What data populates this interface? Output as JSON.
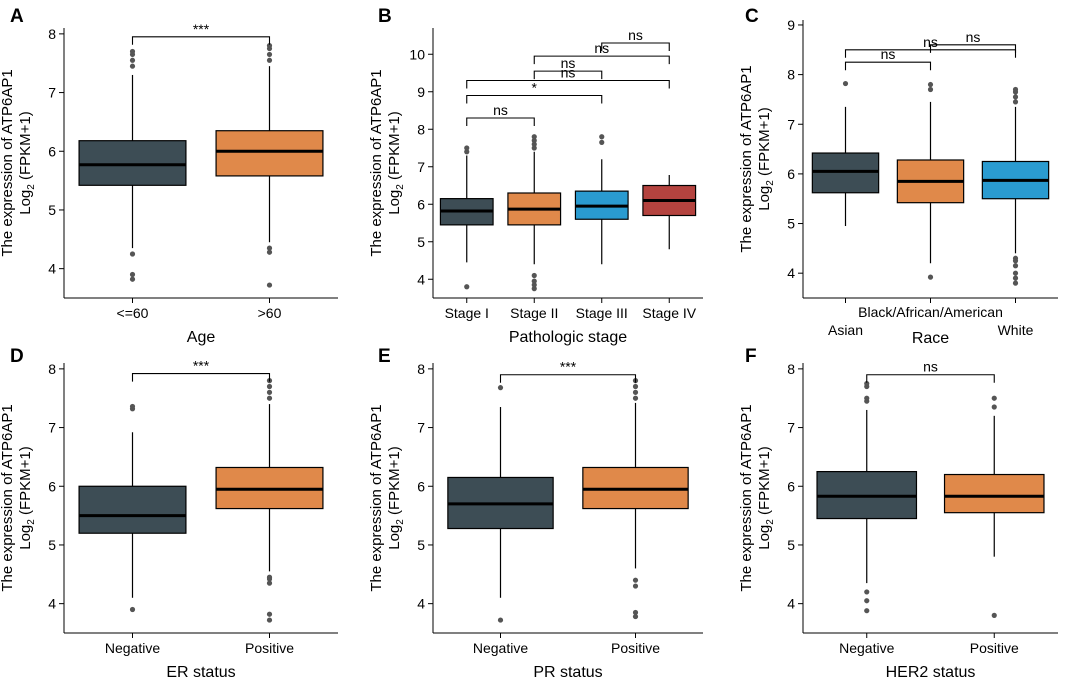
{
  "colors": {
    "dark": "#3d4d55",
    "orange": "#e0894a",
    "blue": "#2a9bd0",
    "red": "#b4433f",
    "outlier": "#555555",
    "axis": "#000000"
  },
  "chart_data": [
    {
      "panel": "A",
      "type": "box",
      "xlabel": "Age",
      "ylabel_main": "The expression of ATP6AP1",
      "ylabel_sub_prefix": "Log",
      "ylabel_sub_index": "2",
      "ylabel_sub_suffix": " (FPKM+1)",
      "ylim": [
        3.5,
        8.1
      ],
      "yticks": [
        4,
        5,
        6,
        7,
        8
      ],
      "categories": [
        "<=60",
        ">60"
      ],
      "boxes": [
        {
          "label": "<=60",
          "color": "dark",
          "whisker_low": 4.35,
          "q1": 5.42,
          "median": 5.77,
          "q3": 6.18,
          "whisker_high": 7.3,
          "outliers": [
            3.82,
            3.9,
            4.25,
            7.45,
            7.55,
            7.65,
            7.7
          ]
        },
        {
          "label": ">60",
          "color": "orange",
          "whisker_low": 4.45,
          "q1": 5.58,
          "median": 6.0,
          "q3": 6.35,
          "whisker_high": 7.45,
          "outliers": [
            3.72,
            4.28,
            4.35,
            7.55,
            7.65,
            7.75,
            7.8
          ]
        }
      ],
      "comparisons": [
        {
          "from": 0,
          "to": 1,
          "y": 7.95,
          "label": "***"
        }
      ]
    },
    {
      "panel": "B",
      "type": "box",
      "xlabel": "Pathologic stage",
      "ylabel_main": "The expression of ATP6AP1",
      "ylabel_sub_prefix": "Log",
      "ylabel_sub_index": "2",
      "ylabel_sub_suffix": " (FPKM+1)",
      "ylim": [
        3.5,
        10.7
      ],
      "yticks": [
        4,
        5,
        6,
        7,
        8,
        9,
        10
      ],
      "categories": [
        "Stage I",
        "Stage II",
        "Stage III",
        "Stage IV"
      ],
      "boxes": [
        {
          "label": "Stage I",
          "color": "dark",
          "whisker_low": 4.45,
          "q1": 5.45,
          "median": 5.82,
          "q3": 6.15,
          "whisker_high": 7.3,
          "outliers": [
            3.8,
            7.4,
            7.5
          ]
        },
        {
          "label": "Stage II",
          "color": "orange",
          "whisker_low": 4.4,
          "q1": 5.45,
          "median": 5.87,
          "q3": 6.3,
          "whisker_high": 7.4,
          "outliers": [
            3.75,
            3.85,
            3.95,
            4.1,
            7.5,
            7.6,
            7.7,
            7.8
          ]
        },
        {
          "label": "Stage III",
          "color": "blue",
          "whisker_low": 4.4,
          "q1": 5.6,
          "median": 5.95,
          "q3": 6.35,
          "whisker_high": 7.2,
          "outliers": [
            7.65,
            7.8
          ]
        },
        {
          "label": "Stage IV",
          "color": "red",
          "whisker_low": 4.8,
          "q1": 5.7,
          "median": 6.1,
          "q3": 6.5,
          "whisker_high": 6.78,
          "outliers": []
        }
      ],
      "comparisons": [
        {
          "from": 0,
          "to": 1,
          "y": 8.3,
          "label": "ns"
        },
        {
          "from": 0,
          "to": 2,
          "y": 8.9,
          "label": "*"
        },
        {
          "from": 0,
          "to": 3,
          "y": 9.3,
          "label": "ns"
        },
        {
          "from": 1,
          "to": 2,
          "y": 9.55,
          "label": "ns"
        },
        {
          "from": 1,
          "to": 3,
          "y": 9.95,
          "label": "ns"
        },
        {
          "from": 2,
          "to": 3,
          "y": 10.3,
          "label": "ns"
        }
      ]
    },
    {
      "panel": "C",
      "type": "box",
      "xlabel": "Race",
      "ylabel_main": "The expression of ATP6AP1",
      "ylabel_sub_prefix": "Log",
      "ylabel_sub_index": "2",
      "ylabel_sub_suffix": " (FPKM+1)",
      "ylim": [
        3.5,
        9.1
      ],
      "yticks": [
        4,
        5,
        6,
        7,
        8,
        9
      ],
      "categories": [
        "Asian",
        "Black/African/American",
        "White"
      ],
      "staggered_labels": true,
      "boxes": [
        {
          "label": "Asian",
          "color": "dark",
          "whisker_low": 4.95,
          "q1": 5.62,
          "median": 6.05,
          "q3": 6.42,
          "whisker_high": 7.35,
          "outliers": [
            7.82
          ]
        },
        {
          "label": "Black/African/American",
          "color": "orange",
          "whisker_low": 4.2,
          "q1": 5.42,
          "median": 5.85,
          "q3": 6.28,
          "whisker_high": 7.45,
          "outliers": [
            3.92,
            7.7,
            7.8
          ]
        },
        {
          "label": "White",
          "color": "blue",
          "whisker_low": 4.4,
          "q1": 5.5,
          "median": 5.87,
          "q3": 6.25,
          "whisker_high": 7.35,
          "outliers": [
            3.8,
            3.9,
            4.0,
            4.15,
            4.25,
            4.3,
            7.45,
            7.55,
            7.65,
            7.7
          ]
        }
      ],
      "comparisons": [
        {
          "from": 0,
          "to": 1,
          "y": 8.25,
          "label": "ns"
        },
        {
          "from": 0,
          "to": 2,
          "y": 8.5,
          "label": "ns"
        },
        {
          "from": 1,
          "to": 2,
          "y": 8.6,
          "label": "ns"
        }
      ]
    },
    {
      "panel": "D",
      "type": "box",
      "xlabel": "ER status",
      "ylabel_main": "The expression of ATP6AP1",
      "ylabel_sub_prefix": "Log",
      "ylabel_sub_index": "2",
      "ylabel_sub_suffix": " (FPKM+1)",
      "ylim": [
        3.5,
        8.1
      ],
      "yticks": [
        4,
        5,
        6,
        7,
        8
      ],
      "categories": [
        "Negative",
        "Positive"
      ],
      "boxes": [
        {
          "label": "Negative",
          "color": "dark",
          "whisker_low": 4.1,
          "q1": 5.2,
          "median": 5.5,
          "q3": 6.0,
          "whisker_high": 6.92,
          "outliers": [
            3.9,
            7.32,
            7.36
          ]
        },
        {
          "label": "Positive",
          "color": "orange",
          "whisker_low": 4.55,
          "q1": 5.62,
          "median": 5.95,
          "q3": 6.32,
          "whisker_high": 7.4,
          "outliers": [
            3.72,
            3.82,
            4.35,
            4.42,
            4.45,
            7.5,
            7.6,
            7.7,
            7.8
          ]
        }
      ],
      "comparisons": [
        {
          "from": 0,
          "to": 1,
          "y": 7.92,
          "label": "***"
        }
      ]
    },
    {
      "panel": "E",
      "type": "box",
      "xlabel": "PR status",
      "ylabel_main": "The expression of ATP6AP1",
      "ylabel_sub_prefix": "Log",
      "ylabel_sub_index": "2",
      "ylabel_sub_suffix": " (FPKM+1)",
      "ylim": [
        3.5,
        8.1
      ],
      "yticks": [
        4,
        5,
        6,
        7,
        8
      ],
      "categories": [
        "Negative",
        "Positive"
      ],
      "boxes": [
        {
          "label": "Negative",
          "color": "dark",
          "whisker_low": 4.1,
          "q1": 5.28,
          "median": 5.7,
          "q3": 6.15,
          "whisker_high": 7.35,
          "outliers": [
            3.72,
            7.68
          ]
        },
        {
          "label": "Positive",
          "color": "orange",
          "whisker_low": 4.6,
          "q1": 5.62,
          "median": 5.95,
          "q3": 6.32,
          "whisker_high": 7.42,
          "outliers": [
            3.78,
            3.85,
            4.3,
            4.4,
            7.5,
            7.6,
            7.7,
            7.8
          ]
        }
      ],
      "comparisons": [
        {
          "from": 0,
          "to": 1,
          "y": 7.9,
          "label": "***"
        }
      ]
    },
    {
      "panel": "F",
      "type": "box",
      "xlabel": "HER2 status",
      "ylabel_main": "The expression of ATP6AP1",
      "ylabel_sub_prefix": "Log",
      "ylabel_sub_index": "2",
      "ylabel_sub_suffix": " (FPKM+1)",
      "ylim": [
        3.5,
        8.1
      ],
      "yticks": [
        4,
        5,
        6,
        7,
        8
      ],
      "categories": [
        "Negative",
        "Positive"
      ],
      "boxes": [
        {
          "label": "Negative",
          "color": "dark",
          "whisker_low": 4.35,
          "q1": 5.45,
          "median": 5.83,
          "q3": 6.25,
          "whisker_high": 7.3,
          "outliers": [
            3.88,
            4.05,
            4.2,
            7.45,
            7.5,
            7.7,
            7.75
          ]
        },
        {
          "label": "Positive",
          "color": "orange",
          "whisker_low": 4.8,
          "q1": 5.55,
          "median": 5.83,
          "q3": 6.2,
          "whisker_high": 7.2,
          "outliers": [
            3.8,
            7.35,
            7.5
          ]
        }
      ],
      "comparisons": [
        {
          "from": 0,
          "to": 1,
          "y": 7.9,
          "label": "ns"
        }
      ]
    }
  ]
}
